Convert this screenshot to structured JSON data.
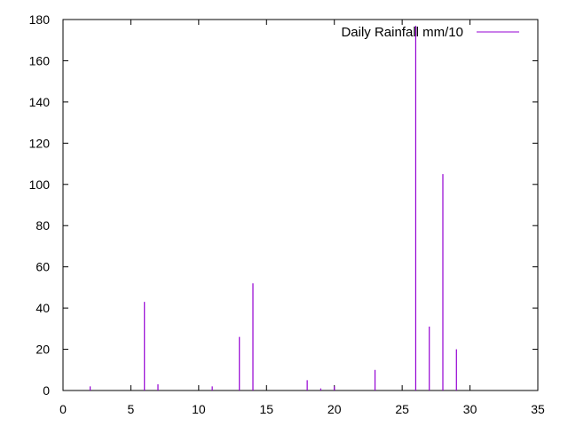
{
  "chart_data": {
    "type": "bar",
    "title": "",
    "xlabel": "",
    "ylabel": "",
    "xlim": [
      0,
      35
    ],
    "ylim": [
      0,
      180
    ],
    "xticks": [
      0,
      5,
      10,
      15,
      20,
      25,
      30,
      35
    ],
    "yticks": [
      0,
      20,
      40,
      60,
      80,
      100,
      120,
      140,
      160,
      180
    ],
    "grid": false,
    "legend_position": "top-right",
    "series": [
      {
        "name": "Daily Rainfall mm/10",
        "color": "#9400d3",
        "points": [
          {
            "x": 2,
            "y": 2
          },
          {
            "x": 6,
            "y": 43
          },
          {
            "x": 7,
            "y": 3
          },
          {
            "x": 11,
            "y": 2
          },
          {
            "x": 13,
            "y": 26
          },
          {
            "x": 14,
            "y": 52
          },
          {
            "x": 18,
            "y": 5
          },
          {
            "x": 19,
            "y": 1
          },
          {
            "x": 20,
            "y": 2
          },
          {
            "x": 23,
            "y": 10
          },
          {
            "x": 26,
            "y": 177
          },
          {
            "x": 27,
            "y": 31
          },
          {
            "x": 28,
            "y": 105
          },
          {
            "x": 29,
            "y": 20
          }
        ]
      }
    ]
  }
}
